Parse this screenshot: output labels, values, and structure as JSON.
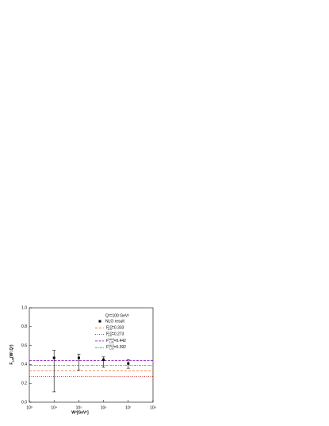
{
  "chart_data": {
    "type": "errorbar",
    "x_label": "W²[GeV²]",
    "y_label_base": "F",
    "y_label_sub": "L/S",
    "y_label_rest": "(W²,Q²)",
    "legend_title": "Q²=100 GeV²",
    "x_log": true,
    "xlim": [
      1000,
      100000000
    ],
    "xticks": [
      {
        "value": 1000,
        "label": "10³"
      },
      {
        "value": 10000,
        "label": "10⁴"
      },
      {
        "value": 100000,
        "label": "10⁵"
      },
      {
        "value": 1000000,
        "label": "10⁶"
      },
      {
        "value": 10000000,
        "label": "10⁷"
      },
      {
        "value": 100000000,
        "label": "10⁸"
      }
    ],
    "ylim": [
      0,
      1
    ],
    "yticks": [
      {
        "value": 0,
        "label": "0.0"
      },
      {
        "value": 0.2,
        "label": "0.2"
      },
      {
        "value": 0.4,
        "label": "0.4"
      },
      {
        "value": 0.6,
        "label": "0.6"
      },
      {
        "value": 0.8,
        "label": "0.8"
      },
      {
        "value": 1,
        "label": "1.0"
      }
    ],
    "series": [
      {
        "name": "NLO result",
        "color": "#000000",
        "x": [
          10000,
          100000,
          1000000,
          10000000
        ],
        "values": [
          0.47,
          0.47,
          0.45,
          0.41
        ],
        "errors_minus": [
          0.36,
          0.13,
          0.08,
          0.05
        ],
        "errors_plus": [
          0.08,
          0.04,
          0.03,
          0.04
        ]
      }
    ],
    "reference_lines": [
      {
        "base": "F",
        "sub": "L/S",
        "sup": "LO",
        "value": 0.333,
        "value_label": "=0.333",
        "color": "#f07020",
        "dash": "3,2"
      },
      {
        "base": "F",
        "sub": "L/S",
        "sup": "LO",
        "value": 0.273,
        "value_label": "=0.273",
        "color": "#c00000",
        "dash": "1,1.5"
      },
      {
        "base": "F",
        "sub": "L/S",
        "sup": "NLO",
        "value": 0.442,
        "value_label": "=0.442",
        "color": "#7a00b0",
        "dash": "3,1.5"
      },
      {
        "base": "F",
        "sub": "L/S",
        "sup": "NLO",
        "value": 0.392,
        "value_label": "=0.392",
        "color": "#10a0a0",
        "dash": "3,1,1,1"
      }
    ]
  }
}
